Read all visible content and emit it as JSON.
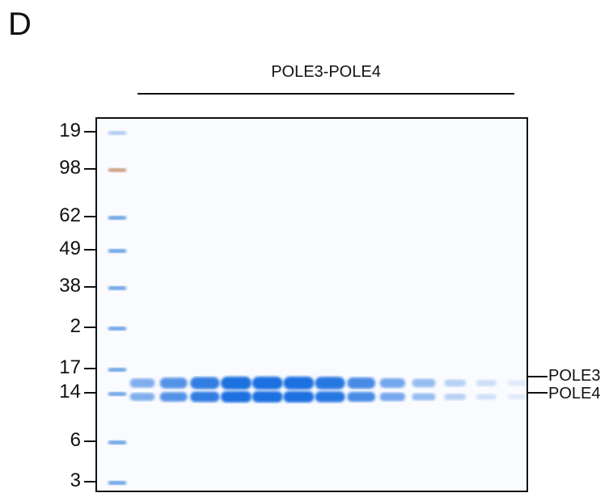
{
  "panel": {
    "letter": "D"
  },
  "sample": {
    "label": "POLE3-POLE4"
  },
  "ladder": {
    "labels": [
      "19",
      "98",
      "62",
      "49",
      "38",
      "2",
      "17",
      "14",
      "6",
      "3"
    ]
  },
  "bands": {
    "upper_label": "POLE3",
    "lower_label": "POLE4"
  },
  "colors": {
    "band": "#1f6fe0",
    "ladder_band": "#4a8fe0",
    "ladder_top": "#c08a6a",
    "frame": "#111111"
  },
  "lanes": {
    "count": 13,
    "intensity": [
      0.55,
      0.75,
      0.9,
      1.0,
      1.0,
      1.0,
      0.95,
      0.8,
      0.6,
      0.45,
      0.3,
      0.2,
      0.12
    ]
  }
}
